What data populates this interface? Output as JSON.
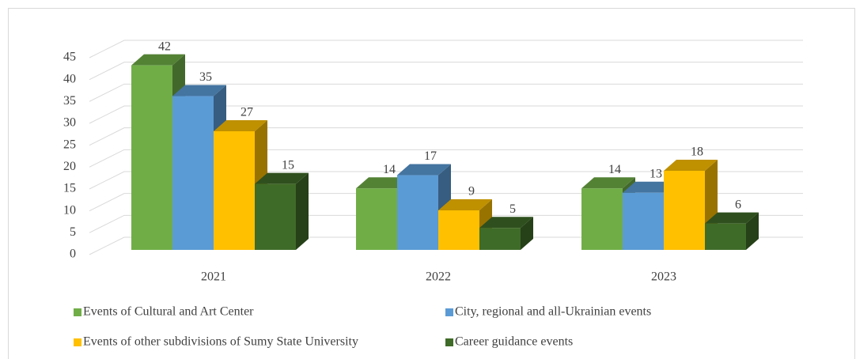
{
  "chart_data": {
    "type": "bar3d",
    "categories": [
      "2021",
      "2022",
      "2023"
    ],
    "series": [
      {
        "name": "Events of Cultural and Art Center",
        "color": "#70ad47",
        "values": [
          42,
          14,
          14
        ]
      },
      {
        "name": "City, regional and all-Ukrainian events",
        "color": "#5b9bd5",
        "values": [
          35,
          17,
          13
        ]
      },
      {
        "name": "Events of other subdivisions of Sumy State University",
        "color": "#ffc000",
        "values": [
          27,
          9,
          18
        ]
      },
      {
        "name": "Career guidance events",
        "color": "#3f6b28",
        "values": [
          15,
          5,
          6
        ]
      }
    ],
    "ylim": [
      0,
      45
    ],
    "yticks": [
      0,
      5,
      10,
      15,
      20,
      25,
      30,
      35,
      40,
      45
    ],
    "grid": true
  }
}
